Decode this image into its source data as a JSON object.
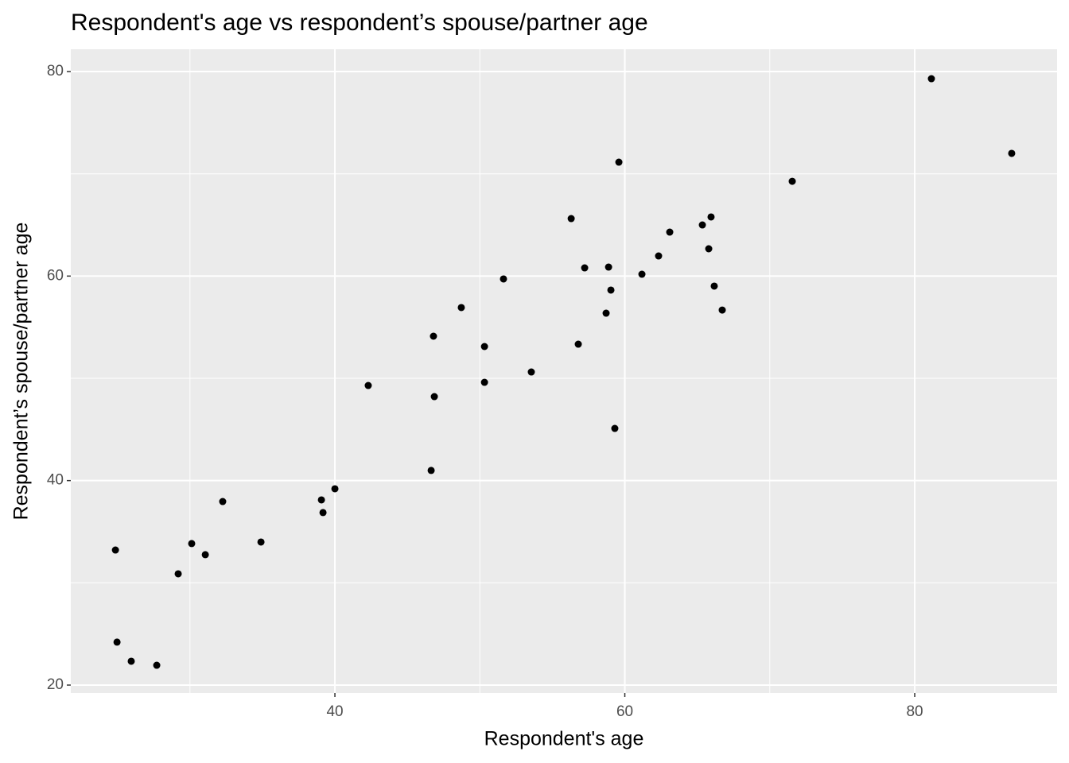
{
  "chart_data": {
    "type": "scatter",
    "title": "Respondent's age vs respondent’s spouse/partner age",
    "x_label": "Respondent's age",
    "y_label": "Respondent’s spouse/partner age",
    "color": "#000000",
    "grid": true,
    "xlim": [
      21.78,
      89.82
    ],
    "xticks": [
      40,
      60,
      80
    ],
    "ylim": [
      19.22,
      82.18
    ],
    "yticks": [
      20,
      40,
      60,
      80
    ],
    "x": [
      24.86,
      24.97,
      25.95,
      27.71,
      29.19,
      30.12,
      31.06,
      32.26,
      34.9,
      39.07,
      39.18,
      40.0,
      42.3,
      46.64,
      46.8,
      46.86,
      48.72,
      50.32,
      50.32,
      51.63,
      53.55,
      56.3,
      56.79,
      57.23,
      58.71,
      58.88,
      59.04,
      59.31,
      59.59,
      61.18,
      62.33,
      63.1,
      65.35,
      65.79,
      65.95,
      66.17,
      66.72,
      71.55,
      81.15,
      86.69
    ],
    "values": [
      33.21,
      24.2,
      22.33,
      21.94,
      30.88,
      33.84,
      32.75,
      37.95,
      33.99,
      38.11,
      36.87,
      39.2,
      49.3,
      40.99,
      54.12,
      48.21,
      56.92,
      49.61,
      53.11,
      59.72,
      50.62,
      65.62,
      53.34,
      60.8,
      56.37,
      60.88,
      58.63,
      45.1,
      71.14,
      60.18,
      61.97,
      64.3,
      65.0,
      62.67,
      65.78,
      59.02,
      56.68,
      69.27,
      79.3,
      72.0
    ]
  }
}
